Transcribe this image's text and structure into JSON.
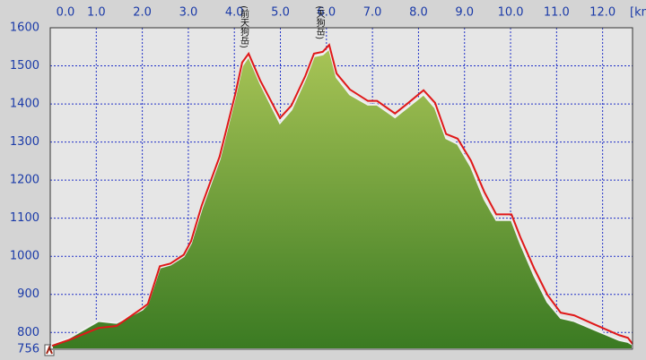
{
  "chart_data": {
    "type": "area",
    "xlabel": "[km]",
    "annotations": [
      {
        "text": "(前天狗岳)",
        "x": 4.2,
        "y": 1532
      },
      {
        "text": "(天狗岳)",
        "x": 5.85,
        "y": 1555
      }
    ],
    "x": [
      0.04,
      0.4,
      1.05,
      1.44,
      2.0,
      2.12,
      2.38,
      2.61,
      2.9,
      3.06,
      3.29,
      3.68,
      4.02,
      4.17,
      4.31,
      4.56,
      4.99,
      5.24,
      5.54,
      5.73,
      5.92,
      6.06,
      6.22,
      6.51,
      6.9,
      7.1,
      7.49,
      7.78,
      8.11,
      8.36,
      8.6,
      8.85,
      9.14,
      9.43,
      9.69,
      10.02,
      10.21,
      10.51,
      10.8,
      11.09,
      11.38,
      11.77,
      12.36,
      12.55,
      12.65
    ],
    "series": [
      {
        "style": "area",
        "color": "#7fa43c",
        "values": [
          770,
          785,
          830,
          825,
          860,
          875,
          970,
          978,
          1000,
          1035,
          1125,
          1255,
          1420,
          1500,
          1525,
          1455,
          1350,
          1385,
          1465,
          1525,
          1530,
          1545,
          1470,
          1425,
          1398,
          1398,
          1365,
          1393,
          1425,
          1390,
          1310,
          1295,
          1235,
          1150,
          1095,
          1095,
          1035,
          950,
          880,
          838,
          830,
          810,
          780,
          775,
          768
        ]
      },
      {
        "style": "line",
        "color": "#e01818",
        "values": [
          765,
          780,
          812,
          817,
          864,
          875,
          974,
          981,
          1004,
          1040,
          1133,
          1262,
          1426,
          1509,
          1532,
          1462,
          1363,
          1396,
          1473,
          1532,
          1537,
          1555,
          1480,
          1438,
          1408,
          1408,
          1375,
          1403,
          1436,
          1403,
          1321,
          1309,
          1251,
          1169,
          1110,
          1110,
          1051,
          969,
          899,
          852,
          845,
          824,
          793,
          786,
          770
        ]
      }
    ],
    "xlim": [
      0,
      12.65
    ],
    "ylim": [
      756,
      1600
    ],
    "xticks": [
      {
        "value": 0,
        "label": "0.0"
      },
      {
        "value": 1,
        "label": "1.0"
      },
      {
        "value": 2,
        "label": "2.0"
      },
      {
        "value": 3,
        "label": "3.0"
      },
      {
        "value": 4,
        "label": "4.0"
      },
      {
        "value": 5,
        "label": "5.0"
      },
      {
        "value": 6,
        "label": "6.0"
      },
      {
        "value": 7,
        "label": "7.0"
      },
      {
        "value": 8,
        "label": "8.0"
      },
      {
        "value": 9,
        "label": "9.0"
      },
      {
        "value": 10,
        "label": "10.0"
      },
      {
        "value": 11,
        "label": "11.0"
      },
      {
        "value": 12,
        "label": "12.0"
      }
    ],
    "yticks": [
      756,
      800,
      900,
      1000,
      1100,
      1200,
      1300,
      1400,
      1500,
      1600
    ],
    "grid": true
  }
}
